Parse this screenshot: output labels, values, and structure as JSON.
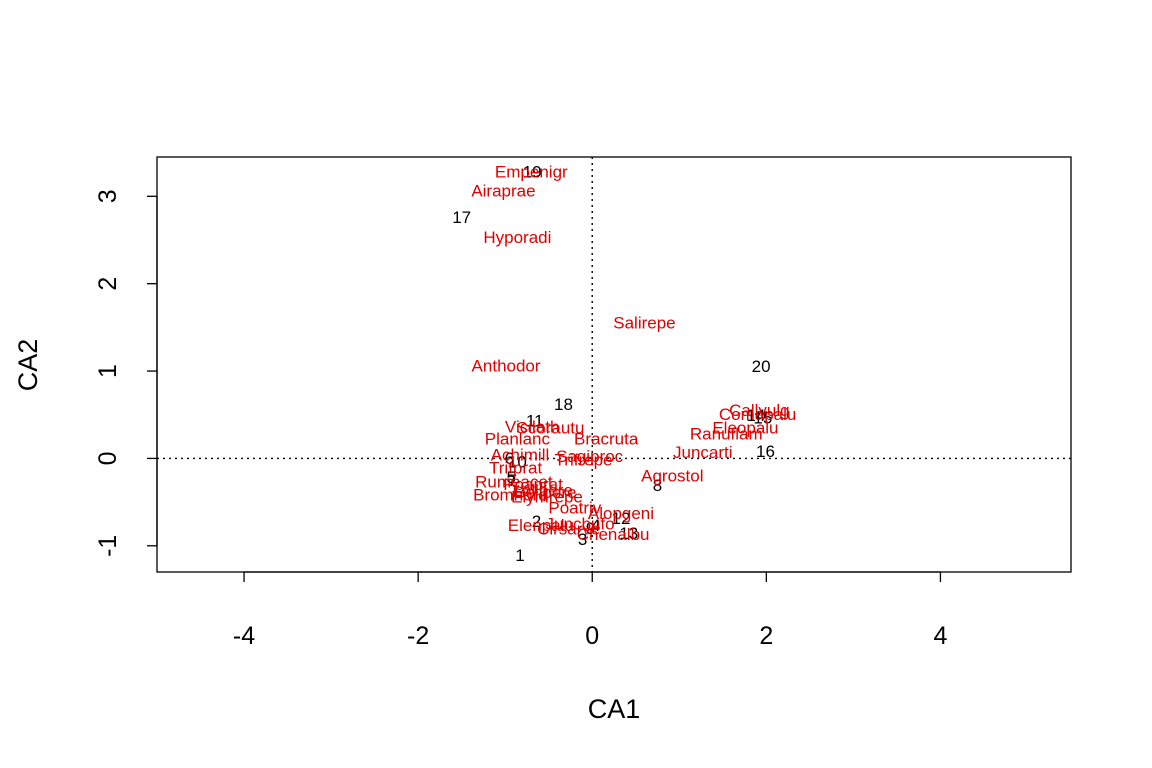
{
  "chart_data": {
    "type": "scatter",
    "xlabel": "CA1",
    "ylabel": "CA2",
    "xlim": [
      -5,
      5.5
    ],
    "ylim": [
      -1.3,
      3.45
    ],
    "xticks": [
      -4,
      -2,
      0,
      2,
      4
    ],
    "yticks": [
      -1,
      0,
      1,
      2,
      3
    ],
    "reference_lines": {
      "x": 0,
      "y": 0,
      "style": "dotted"
    },
    "colors": {
      "sites": "#000000",
      "species": "#e00000"
    },
    "sites": [
      {
        "label": "1",
        "x": -0.83,
        "y": -1.11
      },
      {
        "label": "2",
        "x": -0.64,
        "y": -0.72
      },
      {
        "label": "3",
        "x": -0.11,
        "y": -0.93
      },
      {
        "label": "4",
        "x": 0.04,
        "y": -0.77
      },
      {
        "label": "5",
        "x": -0.93,
        "y": -0.22
      },
      {
        "label": "6",
        "x": -0.95,
        "y": 0.0
      },
      {
        "label": "7",
        "x": -0.92,
        "y": -0.25
      },
      {
        "label": "8",
        "x": 0.75,
        "y": -0.31
      },
      {
        "label": "9",
        "x": -0.02,
        "y": -0.8
      },
      {
        "label": "10",
        "x": -0.86,
        "y": -0.04
      },
      {
        "label": "11",
        "x": -0.66,
        "y": 0.43
      },
      {
        "label": "12",
        "x": 0.33,
        "y": -0.69
      },
      {
        "label": "13",
        "x": 0.42,
        "y": -0.86
      },
      {
        "label": "14",
        "x": 1.88,
        "y": 0.49
      },
      {
        "label": "15",
        "x": 1.96,
        "y": 0.46
      },
      {
        "label": "16",
        "x": 1.99,
        "y": 0.08
      },
      {
        "label": "17",
        "x": -1.5,
        "y": 2.76
      },
      {
        "label": "18",
        "x": -0.33,
        "y": 0.62
      },
      {
        "label": "19",
        "x": -0.69,
        "y": 3.28
      },
      {
        "label": "20",
        "x": 1.94,
        "y": 1.05
      }
    ],
    "species": [
      {
        "label": "Empenigr",
        "x": -0.7,
        "y": 3.28
      },
      {
        "label": "Airaprae",
        "x": -1.02,
        "y": 3.06
      },
      {
        "label": "Hyporadi",
        "x": -0.86,
        "y": 2.53
      },
      {
        "label": "Salirepe",
        "x": 0.6,
        "y": 1.55
      },
      {
        "label": "Anthodor",
        "x": -0.99,
        "y": 1.06
      },
      {
        "label": "Callvulg",
        "x": 1.92,
        "y": 0.55
      },
      {
        "label": "Comapalu",
        "x": 1.9,
        "y": 0.5
      },
      {
        "label": "Eleopalu",
        "x": 1.76,
        "y": 0.35
      },
      {
        "label": "Ranuflam",
        "x": 1.54,
        "y": 0.28
      },
      {
        "label": "Juncarti",
        "x": 1.27,
        "y": 0.07
      },
      {
        "label": "Agrostol",
        "x": 0.92,
        "y": -0.2
      },
      {
        "label": "Vicilath",
        "x": -0.69,
        "y": 0.36
      },
      {
        "label": "Scorautu",
        "x": -0.48,
        "y": 0.35
      },
      {
        "label": "Planlanc",
        "x": -0.86,
        "y": 0.22
      },
      {
        "label": "Bracruta",
        "x": 0.16,
        "y": 0.22
      },
      {
        "label": "Achimill",
        "x": -0.83,
        "y": 0.04
      },
      {
        "label": "Sagiproc",
        "x": -0.03,
        "y": 0.02
      },
      {
        "label": "Trifrepe",
        "x": -0.1,
        "y": -0.02
      },
      {
        "label": "Trifprat",
        "x": -0.88,
        "y": -0.11
      },
      {
        "label": "Rumeacet",
        "x": -0.9,
        "y": -0.27
      },
      {
        "label": "Poaprat",
        "x": -0.68,
        "y": -0.3
      },
      {
        "label": "Lolipere",
        "x": -0.57,
        "y": -0.37
      },
      {
        "label": "Bellpere",
        "x": -0.54,
        "y": -0.39
      },
      {
        "label": "Bromhord",
        "x": -0.94,
        "y": -0.42
      },
      {
        "label": "Elymrepe",
        "x": -0.52,
        "y": -0.44
      },
      {
        "label": "Poatriv",
        "x": -0.2,
        "y": -0.57
      },
      {
        "label": "Alopgeni",
        "x": 0.33,
        "y": -0.63
      },
      {
        "label": "Elenpalu",
        "x": -0.59,
        "y": -0.77
      },
      {
        "label": "Juncbufo",
        "x": -0.14,
        "y": -0.75
      },
      {
        "label": "Cirsarve",
        "x": -0.27,
        "y": -0.81
      },
      {
        "label": "Chenalbu",
        "x": 0.24,
        "y": -0.87
      }
    ]
  }
}
